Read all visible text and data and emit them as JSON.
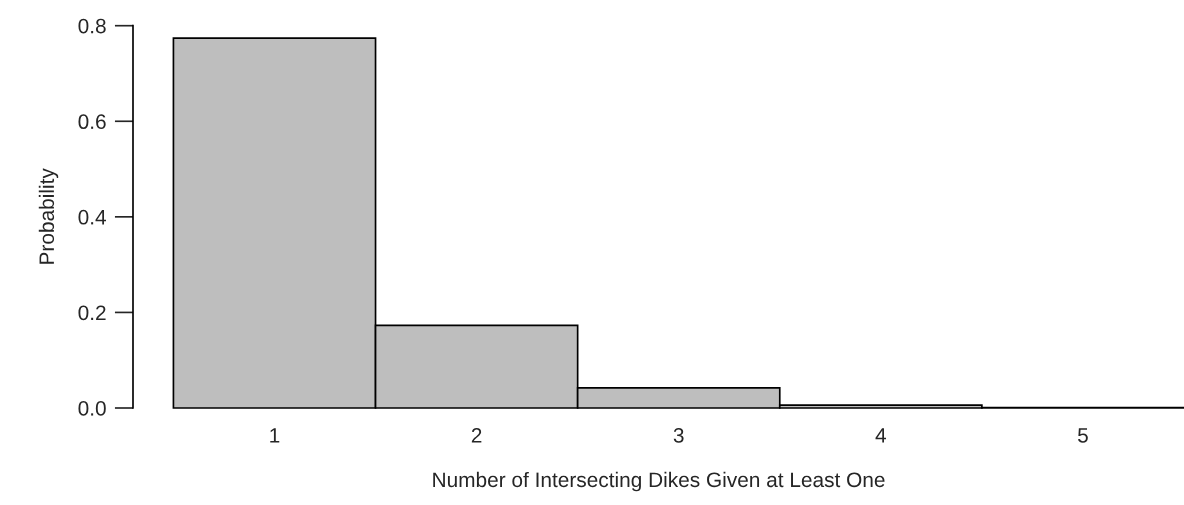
{
  "chart_data": {
    "type": "bar",
    "xlabel": "Number of Intersecting Dikes Given at Least One",
    "ylabel": "Probability",
    "categories": [
      "1",
      "2",
      "3",
      "4",
      "5"
    ],
    "series": [
      {
        "color": "#bebebe",
        "values": [
          0.774,
          0.173,
          0.042,
          0.006,
          0.001
        ]
      }
    ],
    "ylim": [
      0,
      0.8
    ],
    "yticks": [
      {
        "value": 0,
        "label": "0.0"
      },
      {
        "value": 0.2,
        "label": "0.2"
      },
      {
        "value": 0.4,
        "label": "0.4"
      },
      {
        "value": 0.6,
        "label": "0.6"
      },
      {
        "value": 0.8,
        "label": "0.8"
      }
    ],
    "grid": false,
    "legend": false
  }
}
